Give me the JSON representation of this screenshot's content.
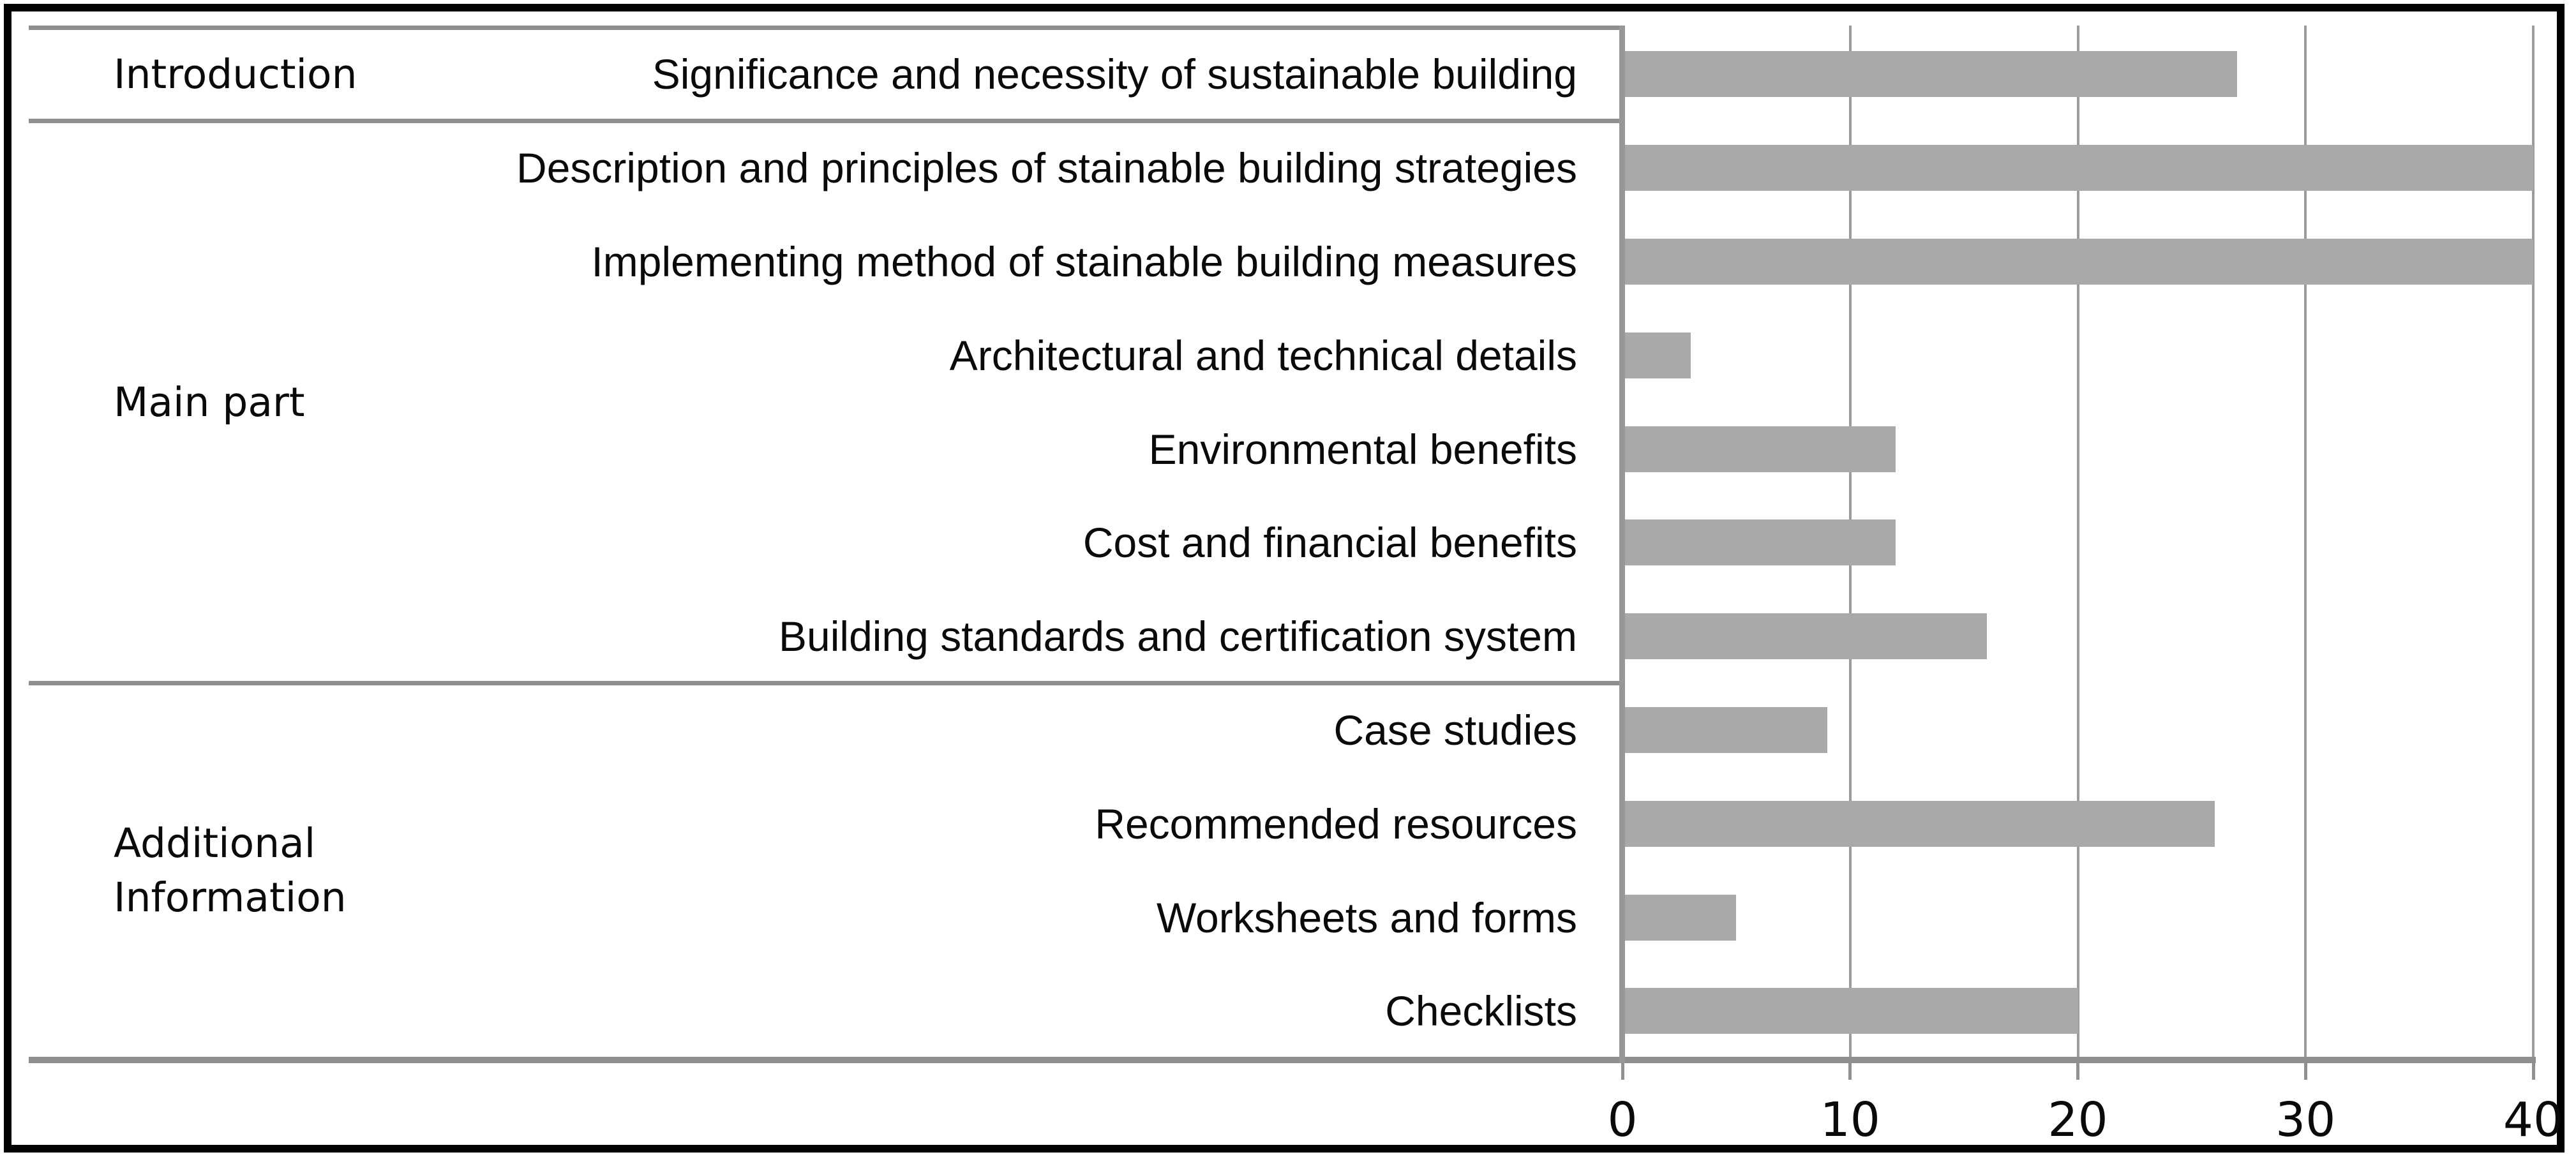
{
  "figure": {
    "description": "Horizontal bar chart of book sections with category table",
    "background_color": "#ffffff",
    "border_color": "#000000"
  },
  "colors": {
    "bar": "#a9a9a9",
    "gridline": "#9c9c9c",
    "axis_rule": "#8f8f8f",
    "zero_line": "#979797",
    "text": "#0a0a0a"
  },
  "chart_data": {
    "type": "bar",
    "orientation": "horizontal",
    "title": "",
    "xlabel": "",
    "ylabel": "",
    "grid": true,
    "legend": null,
    "x_axis": {
      "min": 0,
      "max": 40,
      "ticks": [
        "0",
        "10",
        "20",
        "30",
        "40"
      ],
      "tick_values": [
        0,
        10,
        20,
        30,
        40
      ]
    },
    "sections": [
      {
        "label": "Introduction",
        "items": [
          {
            "label": "Significance and necessity of sustainable building",
            "value": 27
          }
        ]
      },
      {
        "label": "Main part",
        "items": [
          {
            "label": "Description and principles of stainable building strategies",
            "value": 40
          },
          {
            "label": "Implementing method of stainable building measures",
            "value": 40
          },
          {
            "label": "Architectural and technical details",
            "value": 3
          },
          {
            "label": "Environmental benefits",
            "value": 12
          },
          {
            "label": "Cost and financial benefits",
            "value": 12
          },
          {
            "label": "Building standards and certification system",
            "value": 16
          }
        ]
      },
      {
        "label": "Additional Information",
        "items": [
          {
            "label": "Case studies",
            "value": 9
          },
          {
            "label": "Recommended resources",
            "value": 26
          },
          {
            "label": "Worksheets and forms",
            "value": 5
          },
          {
            "label": "Checklists",
            "value": 20
          }
        ]
      }
    ]
  }
}
